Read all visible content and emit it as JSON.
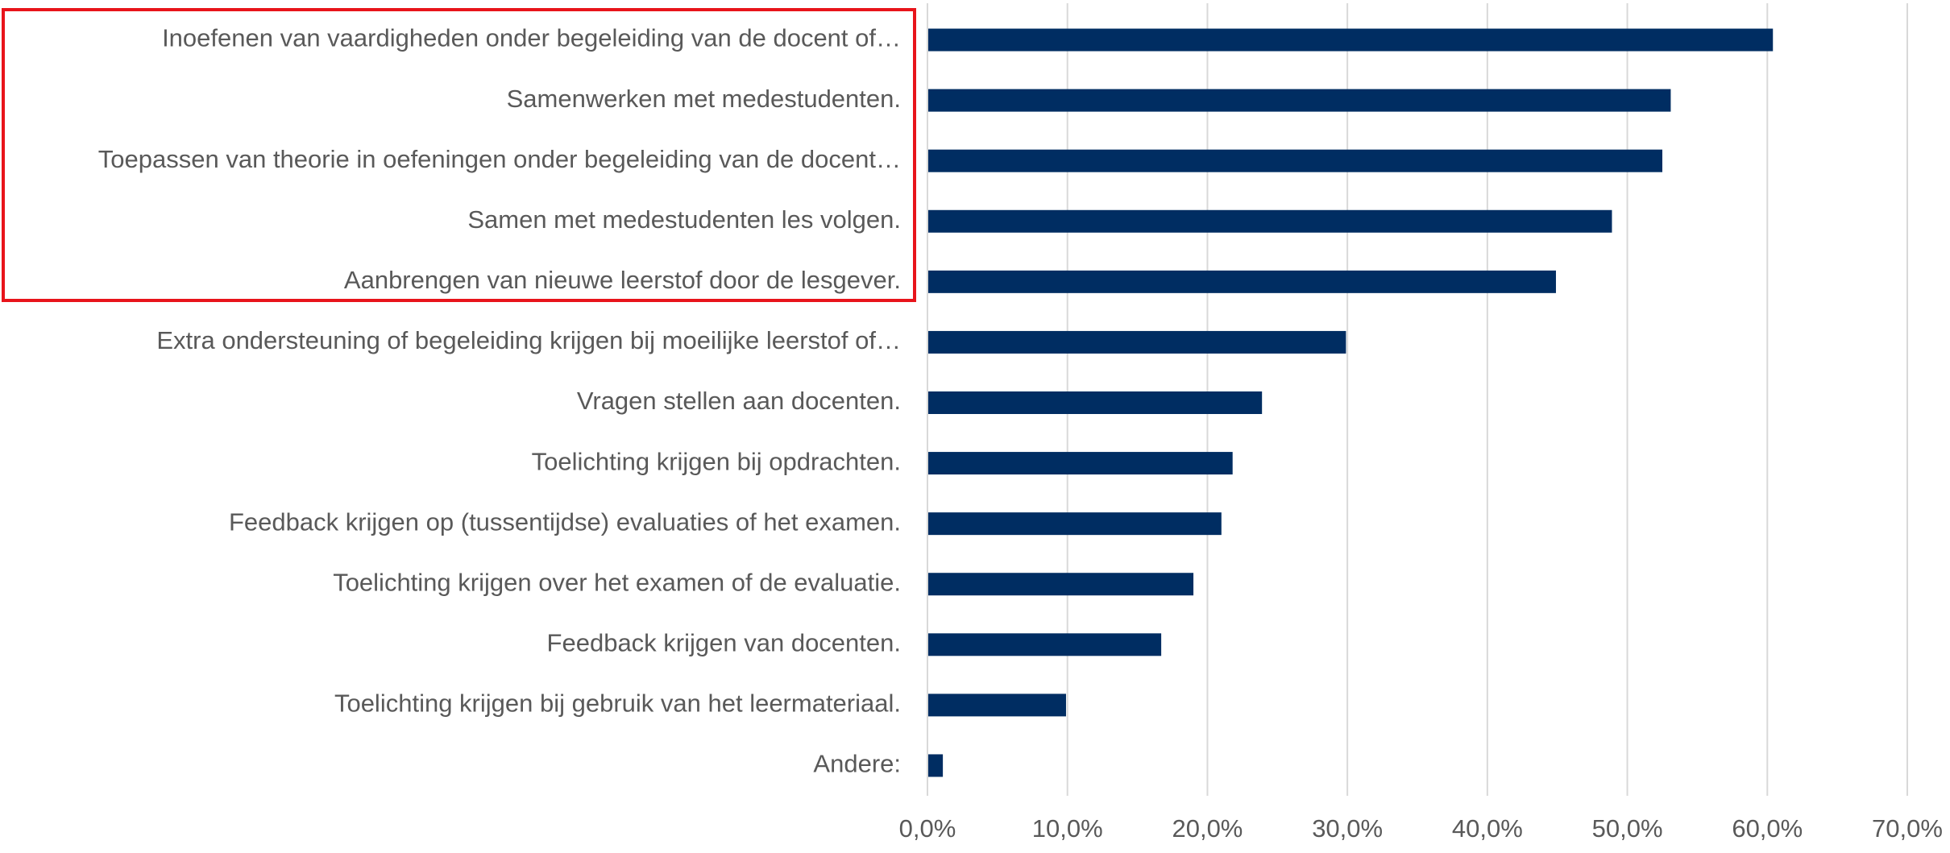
{
  "chart_data": {
    "type": "barh",
    "categories": [
      "Inoefenen van vaardigheden onder begeleiding van de docent of…",
      "Samenwerken met medestudenten.",
      "Toepassen van theorie in oefeningen onder begeleiding van de docent…",
      "Samen met medestudenten les volgen.",
      "Aanbrengen van nieuwe leerstof door de lesgever.",
      "Extra ondersteuning of begeleiding krijgen bij moeilijke leerstof of…",
      "Vragen stellen aan docenten.",
      "Toelichting krijgen bij opdrachten.",
      "Feedback krijgen op (tussentijdse) evaluaties of het examen.",
      "Toelichting krijgen over het examen of de evaluatie.",
      "Feedback krijgen van docenten.",
      "Toelichting krijgen bij gebruik van het leermateriaal.",
      "Andere:"
    ],
    "values": [
      60.4,
      53.1,
      52.5,
      48.9,
      44.9,
      29.9,
      23.9,
      21.8,
      21.0,
      19.0,
      16.7,
      9.9,
      1.1
    ],
    "color": "#002d62",
    "xlim": [
      0,
      70
    ],
    "xticks": [
      {
        "value": 0,
        "label": "0,0%"
      },
      {
        "value": 10,
        "label": "10,0%"
      },
      {
        "value": 20,
        "label": "20,0%"
      },
      {
        "value": 30,
        "label": "30,0%"
      },
      {
        "value": 40,
        "label": "40,0%"
      },
      {
        "value": 50,
        "label": "50,0%"
      },
      {
        "value": 60,
        "label": "60,0%"
      },
      {
        "value": 70,
        "label": "70,0%"
      }
    ],
    "grid": true
  }
}
